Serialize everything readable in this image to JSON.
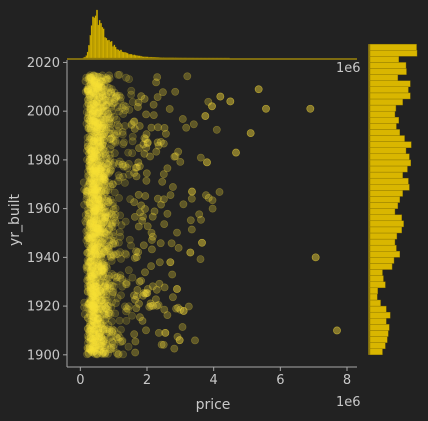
{
  "theme": {
    "background": "#222222",
    "axis_color": "#a8a8a8",
    "text_color": "#c8c8c8",
    "point_color": "#fce13a",
    "hist_color": "#d9b600",
    "hist_edge": "#8a7400"
  },
  "chart_data": {
    "type": "scatter",
    "subtype": "jointplot",
    "xlabel": "price",
    "ylabel": "yr_built",
    "x_offset_label": "1e6",
    "x_ticks": [
      0,
      2,
      4,
      6,
      8
    ],
    "y_ticks": [
      1900,
      1920,
      1940,
      1960,
      1980,
      2000,
      2020
    ],
    "xlim": [
      -0.4,
      8.3
    ],
    "ylim": [
      1895,
      2021
    ],
    "grid": false,
    "marginal_x": "histogram of price (right-skewed, peak near 0.45e6)",
    "marginal_y": "histogram of yr_built",
    "outliers": [
      {
        "x": 7.7,
        "y": 1910
      },
      {
        "x": 7.06,
        "y": 1940
      },
      {
        "x": 6.9,
        "y": 2001
      },
      {
        "x": 5.35,
        "y": 2009
      },
      {
        "x": 5.57,
        "y": 2001
      },
      {
        "x": 4.67,
        "y": 1983
      },
      {
        "x": 4.5,
        "y": 2004
      },
      {
        "x": 5.11,
        "y": 1991
      },
      {
        "x": 3.8,
        "y": 1979
      },
      {
        "x": 3.65,
        "y": 1946
      },
      {
        "x": 3.3,
        "y": 1942
      },
      {
        "x": 3.1,
        "y": 1918
      },
      {
        "x": 2.9,
        "y": 1927
      },
      {
        "x": 2.98,
        "y": 1906
      },
      {
        "x": 3.35,
        "y": 1967
      },
      {
        "x": 3.95,
        "y": 2002
      },
      {
        "x": 3.75,
        "y": 1998
      },
      {
        "x": 4.2,
        "y": 2006
      },
      {
        "x": 2.7,
        "y": 1938
      },
      {
        "x": 2.55,
        "y": 1909
      }
    ],
    "y_hist": {
      "bin_start": 1900,
      "bin_width": 2.5,
      "counts": [
        0.26,
        0.32,
        0.36,
        0.38,
        0.4,
        0.34,
        0.42,
        0.34,
        0.22,
        0.15,
        0.16,
        0.32,
        0.28,
        0.26,
        0.46,
        0.5,
        0.62,
        0.55,
        0.52,
        0.56,
        0.66,
        0.7,
        0.66,
        0.52,
        0.58,
        0.62,
        0.68,
        0.82,
        0.8,
        0.68,
        0.78,
        0.85,
        0.82,
        0.75,
        0.86,
        0.72,
        0.62,
        0.55,
        0.6,
        0.52,
        0.54,
        0.68,
        0.84,
        0.8,
        0.84,
        0.58,
        0.76,
        0.75,
        0.6,
        0.98,
        0.97
      ]
    },
    "x_hist_shape": {
      "peak": 0.45,
      "spread": 0.25,
      "tail_scale": 0.9
    }
  }
}
